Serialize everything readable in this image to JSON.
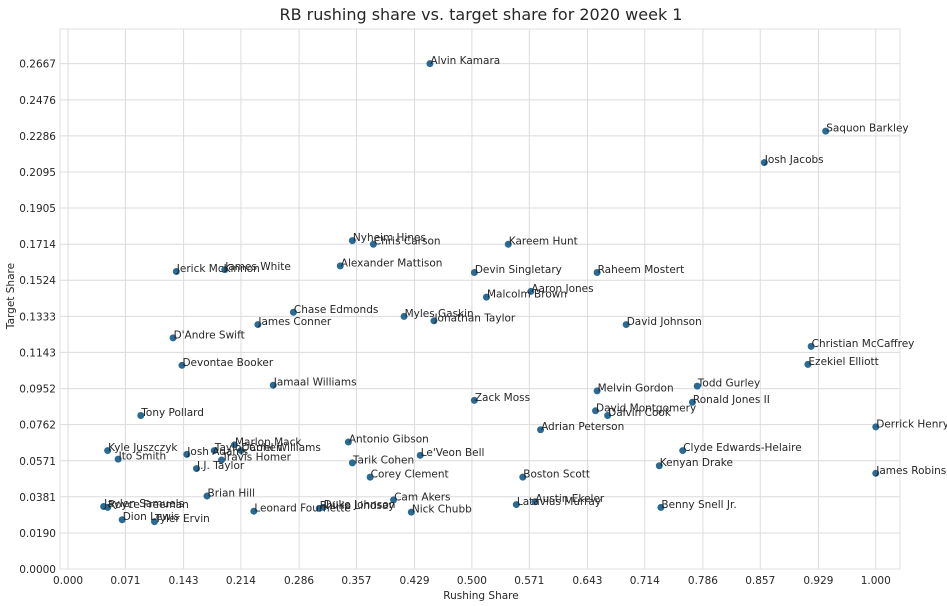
{
  "chart_data": {
    "type": "scatter",
    "title": "RB rushing share vs. target share for 2020 week 1",
    "xlabel": "Rushing Share",
    "ylabel": "Target Share",
    "xlim": [
      -0.01,
      1.03
    ],
    "ylim": [
      0.0,
      0.285
    ],
    "xticks": [
      "0.000",
      "0.071",
      "0.143",
      "0.214",
      "0.286",
      "0.357",
      "0.429",
      "0.500",
      "0.571",
      "0.643",
      "0.714",
      "0.786",
      "0.857",
      "0.929",
      "1.000"
    ],
    "yticks": [
      "0.0000",
      "0.0190",
      "0.0381",
      "0.0571",
      "0.0762",
      "0.0952",
      "0.1143",
      "0.1333",
      "0.1524",
      "0.1714",
      "0.1905",
      "0.2095",
      "0.2286",
      "0.2476",
      "0.2667"
    ],
    "grid": true,
    "color": "#2a6b96",
    "points": [
      {
        "name": "Alvin Kamara",
        "x": 0.448,
        "y": 0.2667
      },
      {
        "name": "Saquon Barkley",
        "x": 0.938,
        "y": 0.2311
      },
      {
        "name": "Josh Jacobs",
        "x": 0.862,
        "y": 0.2145
      },
      {
        "name": "Nyheim Hines",
        "x": 0.352,
        "y": 0.1733
      },
      {
        "name": "Chris Carson",
        "x": 0.378,
        "y": 0.1714
      },
      {
        "name": "Kareem Hunt",
        "x": 0.545,
        "y": 0.1714
      },
      {
        "name": "Alexander Mattison",
        "x": 0.337,
        "y": 0.16
      },
      {
        "name": "James White",
        "x": 0.194,
        "y": 0.158
      },
      {
        "name": "Jerick McKinnon",
        "x": 0.134,
        "y": 0.157
      },
      {
        "name": "Devin Singletary",
        "x": 0.503,
        "y": 0.1565
      },
      {
        "name": "Raheem Mostert",
        "x": 0.655,
        "y": 0.1565
      },
      {
        "name": "Aaron Jones",
        "x": 0.573,
        "y": 0.1465
      },
      {
        "name": "Malcolm Brown",
        "x": 0.518,
        "y": 0.1435
      },
      {
        "name": "Chase Edmonds",
        "x": 0.279,
        "y": 0.1355
      },
      {
        "name": "Myles Gaskin",
        "x": 0.416,
        "y": 0.1333
      },
      {
        "name": "Jonathan Taylor",
        "x": 0.453,
        "y": 0.131
      },
      {
        "name": "James Conner",
        "x": 0.235,
        "y": 0.129
      },
      {
        "name": "David Johnson",
        "x": 0.691,
        "y": 0.129
      },
      {
        "name": "D'Andre Swift",
        "x": 0.13,
        "y": 0.122
      },
      {
        "name": "Christian McCaffrey",
        "x": 0.92,
        "y": 0.1175
      },
      {
        "name": "Devontae Booker",
        "x": 0.141,
        "y": 0.1075
      },
      {
        "name": "Ezekiel Elliott",
        "x": 0.916,
        "y": 0.108
      },
      {
        "name": "Jamaal Williams",
        "x": 0.254,
        "y": 0.097
      },
      {
        "name": "Todd Gurley",
        "x": 0.779,
        "y": 0.0965
      },
      {
        "name": "Melvin Gordon",
        "x": 0.655,
        "y": 0.094
      },
      {
        "name": "Zack Moss",
        "x": 0.503,
        "y": 0.089
      },
      {
        "name": "Ronald Jones II",
        "x": 0.773,
        "y": 0.088
      },
      {
        "name": "David Montgomery",
        "x": 0.653,
        "y": 0.0835
      },
      {
        "name": "Dalvin Cook",
        "x": 0.668,
        "y": 0.081
      },
      {
        "name": "Tony Pollard",
        "x": 0.09,
        "y": 0.081
      },
      {
        "name": "Derrick Henry",
        "x": 1.0,
        "y": 0.075
      },
      {
        "name": "Adrian Peterson",
        "x": 0.585,
        "y": 0.0735
      },
      {
        "name": "Antonio Gibson",
        "x": 0.347,
        "y": 0.067
      },
      {
        "name": "Marlon Mack",
        "x": 0.206,
        "y": 0.0655
      },
      {
        "name": "Kyle Juszczyk",
        "x": 0.049,
        "y": 0.0625
      },
      {
        "name": "Clyde Edwards-Helaire",
        "x": 0.761,
        "y": 0.0625
      },
      {
        "name": "Taylor Cohen",
        "x": 0.181,
        "y": 0.0625
      },
      {
        "name": "Darrel Williams",
        "x": 0.214,
        "y": 0.0625
      },
      {
        "name": "Josh Adams",
        "x": 0.147,
        "y": 0.0605
      },
      {
        "name": "Le'Veon Bell",
        "x": 0.436,
        "y": 0.06
      },
      {
        "name": "Ito Smith",
        "x": 0.062,
        "y": 0.058
      },
      {
        "name": "Travis Homer",
        "x": 0.19,
        "y": 0.0575
      },
      {
        "name": "Tarik Cohen",
        "x": 0.352,
        "y": 0.056
      },
      {
        "name": "Kenyan Drake",
        "x": 0.732,
        "y": 0.0545
      },
      {
        "name": "J.J. Taylor",
        "x": 0.159,
        "y": 0.053
      },
      {
        "name": "James Robinson",
        "x": 1.0,
        "y": 0.0505
      },
      {
        "name": "Corey Clement",
        "x": 0.374,
        "y": 0.0485
      },
      {
        "name": "Boston Scott",
        "x": 0.563,
        "y": 0.0485
      },
      {
        "name": "Brian Hill",
        "x": 0.172,
        "y": 0.0385
      },
      {
        "name": "Cam Akers",
        "x": 0.403,
        "y": 0.0365
      },
      {
        "name": "Austin Ekeler",
        "x": 0.578,
        "y": 0.0355
      },
      {
        "name": "Latavius Murray",
        "x": 0.555,
        "y": 0.034
      },
      {
        "name": "Jaylen Samuels",
        "x": 0.044,
        "y": 0.033
      },
      {
        "name": "Royce Freeman",
        "x": 0.049,
        "y": 0.0325
      },
      {
        "name": "Duke Johnson",
        "x": 0.316,
        "y": 0.0325
      },
      {
        "name": "Phillip Lindsay",
        "x": 0.311,
        "y": 0.032
      },
      {
        "name": "Benny Snell Jr.",
        "x": 0.734,
        "y": 0.0325
      },
      {
        "name": "Leonard Fournette",
        "x": 0.23,
        "y": 0.0305
      },
      {
        "name": "Nick Chubb",
        "x": 0.425,
        "y": 0.03
      },
      {
        "name": "Dion Lewis",
        "x": 0.067,
        "y": 0.026
      },
      {
        "name": "Tyler Ervin",
        "x": 0.107,
        "y": 0.025
      }
    ]
  }
}
